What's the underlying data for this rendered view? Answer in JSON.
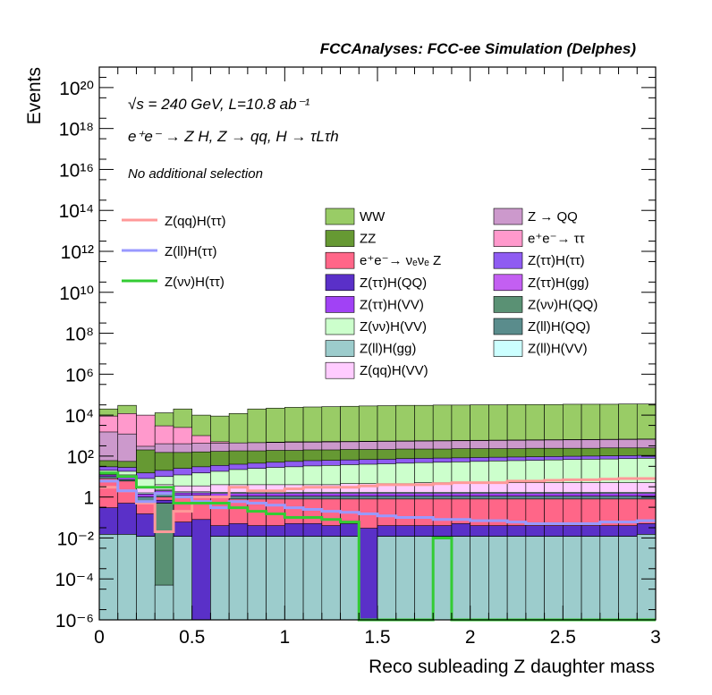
{
  "header": {
    "title": "FCCAnalyses: FCC-ee Simulation (Delphes)",
    "energy_line": "√s = 240 GeV, L=10.8 ab⁻¹",
    "process_line": "e⁺e⁻ → Z H, Z → qq, H → τLτh",
    "selection_line": "No additional selection"
  },
  "chart_data": {
    "type": "histogram",
    "stacked": true,
    "title": "FCCAnalyses: FCC-ee Simulation (Delphes)",
    "xlabel": "Reco subleading Z daughter mass",
    "ylabel": "Events",
    "xlim": [
      0,
      3
    ],
    "ylim": [
      1e-06,
      1e+21
    ],
    "yscale": "log",
    "bin_edges": [
      0,
      0.1,
      0.2,
      0.3,
      0.4,
      0.5,
      0.6,
      0.7,
      0.8,
      0.9,
      1.0,
      1.1,
      1.2,
      1.3,
      1.4,
      1.5,
      1.6,
      1.7,
      1.8,
      1.9,
      2.0,
      2.1,
      2.2,
      2.3,
      2.4,
      2.5,
      2.6,
      2.7,
      2.8,
      2.9,
      3.0
    ],
    "x_ticks": [
      {
        "value": 0,
        "label": "0"
      },
      {
        "value": 0.5,
        "label": "0.5"
      },
      {
        "value": 1,
        "label": "1"
      },
      {
        "value": 1.5,
        "label": "1.5"
      },
      {
        "value": 2,
        "label": "2"
      },
      {
        "value": 2.5,
        "label": "2.5"
      },
      {
        "value": 3,
        "label": "3"
      }
    ],
    "y_ticks": [
      {
        "value": 1e-06,
        "label": "10⁻⁶"
      },
      {
        "value": 0.0001,
        "label": "10⁻⁴"
      },
      {
        "value": 0.01,
        "label": "10⁻²"
      },
      {
        "value": 1,
        "label": "1"
      },
      {
        "value": 100.0,
        "label": "10²"
      },
      {
        "value": 10000.0,
        "label": "10⁴"
      },
      {
        "value": 1000000.0,
        "label": "10⁶"
      },
      {
        "value": 100000000.0,
        "label": "10⁸"
      },
      {
        "value": 10000000000.0,
        "label": "10¹⁰"
      },
      {
        "value": 1000000000000.0,
        "label": "10¹²"
      },
      {
        "value": 100000000000000.0,
        "label": "10¹⁴"
      },
      {
        "value": 1e+16,
        "label": "10¹⁶"
      },
      {
        "value": 1e+18,
        "label": "10¹⁸"
      },
      {
        "value": 1e+20,
        "label": "10²⁰"
      }
    ],
    "stack_boundaries": [
      {
        "name": "Z(ll)H(gg)",
        "color": "#9ccccc",
        "values": [
          0.015,
          0.015,
          0.012,
          5e-05,
          0.012,
          1e-06,
          0.012,
          0.012,
          0.012,
          0.012,
          0.012,
          0.012,
          0.012,
          0.012,
          1e-06,
          0.012,
          0.012,
          0.012,
          0.012,
          0.012,
          0.012,
          0.012,
          0.012,
          0.012,
          0.012,
          0.012,
          0.012,
          0.012,
          0.012,
          0.015
        ]
      },
      {
        "name": "Z(νν)H(QQ)",
        "color": "#5a9174",
        "values": [
          0.015,
          0.015,
          0.012,
          0.5,
          0.012,
          1e-06,
          0.012,
          0.012,
          0.012,
          0.012,
          0.012,
          0.012,
          0.012,
          0.012,
          1e-06,
          0.012,
          0.012,
          0.012,
          0.012,
          0.012,
          0.012,
          0.012,
          0.012,
          0.012,
          0.012,
          0.012,
          0.012,
          0.012,
          0.012,
          0.015
        ]
      },
      {
        "name": "Z(ττ)H(gg)",
        "color": "#c35ff2",
        "values": [
          0.015,
          0.015,
          0.012,
          0.5,
          0.012,
          1e-06,
          0.012,
          0.012,
          0.012,
          0.012,
          0.012,
          0.012,
          0.012,
          0.012,
          1e-06,
          0.012,
          0.012,
          0.012,
          0.012,
          0.012,
          0.012,
          0.012,
          0.012,
          0.012,
          0.012,
          0.012,
          0.012,
          0.012,
          0.012,
          0.015
        ]
      },
      {
        "name": "Z(ττ)H(QQ)",
        "color": "#5a30c8",
        "values": [
          0.3,
          0.5,
          0.15,
          0.7,
          0.06,
          0.08,
          0.04,
          0.05,
          0.04,
          0.04,
          0.05,
          0.05,
          0.04,
          0.05,
          0.03,
          0.04,
          0.04,
          0.04,
          0.04,
          0.05,
          0.04,
          0.04,
          0.04,
          0.04,
          0.04,
          0.04,
          0.04,
          0.04,
          0.04,
          0.05
        ]
      },
      {
        "name": "e⁺e⁻→ νₑνₑ Z",
        "color": "#ff6688",
        "values": [
          8,
          6,
          0.6,
          1.0,
          0.9,
          0.9,
          0.9,
          0.8,
          0.8,
          0.8,
          0.8,
          0.8,
          0.8,
          0.8,
          0.8,
          0.8,
          0.8,
          0.8,
          0.8,
          0.8,
          0.8,
          0.8,
          0.8,
          0.8,
          0.8,
          0.8,
          0.8,
          0.8,
          0.8,
          0.8
        ]
      },
      {
        "name": "Z(ll)H(QQ)",
        "color": "#5a8c8c",
        "values": [
          10,
          7,
          1.0,
          1.5,
          1.2,
          1.2,
          1.1,
          1.1,
          1.1,
          1.1,
          1.1,
          1.1,
          1.1,
          1.1,
          1.1,
          1.1,
          1.1,
          1.1,
          1.1,
          1.1,
          1.1,
          1.1,
          1.1,
          1.1,
          1.1,
          1.1,
          1.1,
          1.1,
          1.1,
          1.1
        ]
      },
      {
        "name": "Z(ττ)H(VV)",
        "color": "#a142f5",
        "values": [
          12,
          9,
          1.4,
          2.0,
          1.6,
          1.6,
          1.5,
          1.5,
          1.5,
          1.5,
          1.5,
          1.5,
          1.5,
          1.5,
          1.5,
          1.5,
          1.5,
          1.5,
          1.5,
          1.5,
          1.5,
          1.5,
          1.5,
          1.5,
          1.5,
          1.5,
          1.5,
          1.5,
          1.5,
          1.5
        ]
      },
      {
        "name": "Z(ll)H(VV)",
        "color": "#ccffff",
        "values": [
          13,
          10,
          1.6,
          2.2,
          1.8,
          1.8,
          1.7,
          1.7,
          1.7,
          1.7,
          1.7,
          1.7,
          1.7,
          1.7,
          1.7,
          1.7,
          1.7,
          1.7,
          1.7,
          1.7,
          1.7,
          1.7,
          1.7,
          1.7,
          1.7,
          1.7,
          1.7,
          1.7,
          1.7,
          1.7
        ]
      },
      {
        "name": "Z(qq)H(VV)",
        "color": "#ffccff",
        "values": [
          15,
          12,
          3,
          4,
          3.5,
          3.5,
          4,
          4,
          4,
          4,
          4,
          4,
          4,
          4.5,
          4.5,
          4.5,
          4.5,
          5,
          5,
          5,
          5,
          5,
          5,
          5,
          5,
          5,
          5,
          5,
          5,
          5
        ]
      },
      {
        "name": "Z(νν)H(VV)",
        "color": "#ccffcc",
        "values": [
          20,
          18,
          8,
          10,
          12,
          15,
          18,
          22,
          25,
          28,
          30,
          33,
          35,
          38,
          40,
          42,
          45,
          48,
          50,
          52,
          55,
          58,
          60,
          62,
          65,
          68,
          70,
          72,
          75,
          78
        ]
      },
      {
        "name": "Z(ττ)H(ττ)",
        "color": "#8f5cf2",
        "values": [
          30,
          28,
          15,
          20,
          25,
          30,
          35,
          40,
          45,
          50,
          55,
          60,
          62,
          65,
          68,
          70,
          75,
          78,
          80,
          82,
          85,
          88,
          90,
          92,
          95,
          98,
          100,
          102,
          105,
          108
        ]
      },
      {
        "name": "ZZ",
        "color": "#669933",
        "values": [
          60,
          55,
          200,
          150,
          150,
          160,
          170,
          180,
          180,
          190,
          190,
          200,
          200,
          210,
          210,
          210,
          220,
          220,
          220,
          230,
          230,
          230,
          230,
          240,
          240,
          240,
          240,
          250,
          250,
          250
        ]
      },
      {
        "name": "Z → QQ",
        "color": "#cc99cc",
        "values": [
          1500,
          1200,
          300,
          400,
          400,
          420,
          430,
          440,
          450,
          460,
          470,
          480,
          490,
          500,
          510,
          520,
          530,
          540,
          550,
          560,
          570,
          580,
          590,
          600,
          610,
          620,
          630,
          640,
          650,
          660
        ]
      },
      {
        "name": "e⁺e⁻→ ττ",
        "color": "#ff99cc",
        "values": [
          9000,
          12000,
          10000,
          3000,
          2500,
          1000,
          500,
          400,
          450,
          480,
          500,
          500,
          520,
          520,
          530,
          540,
          550,
          560,
          570,
          580,
          590,
          600,
          610,
          620,
          630,
          640,
          650,
          660,
          670,
          680
        ]
      },
      {
        "name": "WW",
        "color": "#99cc66",
        "values": [
          20000,
          30000,
          8000,
          13000,
          20000,
          10000,
          9000,
          12000,
          20000,
          22000,
          24000,
          25000,
          26000,
          27000,
          28000,
          29000,
          30000,
          30000,
          31000,
          31000,
          32000,
          32000,
          33000,
          33000,
          33000,
          34000,
          34000,
          34000,
          35000,
          35000
        ]
      }
    ],
    "signal_lines": [
      {
        "name": "Z(qq)H(ττ)",
        "color": "#ff9999",
        "values": [
          3,
          2,
          0.5,
          0.02,
          0.2,
          1.0,
          1.0,
          3,
          2,
          2,
          2.5,
          3,
          3,
          3,
          3.5,
          4,
          4,
          4,
          4.5,
          5,
          5,
          5,
          6,
          6,
          6.5,
          7,
          7,
          7.5,
          8,
          8
        ]
      },
      {
        "name": "Z(ll)H(ττ)",
        "color": "#9999ff",
        "values": [
          6,
          2,
          0.6,
          1.5,
          1.0,
          0.6,
          0.3,
          0.6,
          0.5,
          0.4,
          0.3,
          0.25,
          0.2,
          0.18,
          0.15,
          0.12,
          0.1,
          0.1,
          0.08,
          0.08,
          0.07,
          0.07,
          0.06,
          0.05,
          0.05,
          0.05,
          0.05,
          0.06,
          0.06,
          0.07
        ]
      },
      {
        "name": "Z(νν)H(ττ)",
        "color": "#33cc33",
        "values": [
          15,
          10,
          3,
          3,
          0.5,
          0.5,
          0.5,
          0.3,
          0.2,
          0.15,
          0.1,
          0.1,
          0.08,
          0.06,
          1e-06,
          1e-06,
          1e-06,
          1e-06,
          0.01,
          1e-06,
          1e-06,
          1e-06,
          1e-06,
          1e-06,
          1e-06,
          1e-06,
          1e-06,
          1e-06,
          1e-06,
          1e-06
        ]
      }
    ],
    "legend": {
      "lines": [
        {
          "name": "Z(qq)H(ττ)",
          "color": "#ff9999"
        },
        {
          "name": "Z(ll)H(ττ)",
          "color": "#9999ff"
        },
        {
          "name": "Z(νν)H(ττ)",
          "color": "#33cc33"
        }
      ],
      "columns": [
        [
          {
            "name": "WW",
            "color": "#99cc66"
          },
          {
            "name": "ZZ",
            "color": "#669933"
          },
          {
            "name": "e⁺e⁻→ νₑνₑ Z",
            "color": "#ff6688"
          },
          {
            "name": "Z(ττ)H(QQ)",
            "color": "#5a30c8"
          },
          {
            "name": "Z(ττ)H(VV)",
            "color": "#a142f5"
          },
          {
            "name": "Z(νν)H(VV)",
            "color": "#ccffcc"
          },
          {
            "name": "Z(ll)H(gg)",
            "color": "#9ccccc"
          },
          {
            "name": "Z(qq)H(VV)",
            "color": "#ffccff"
          }
        ],
        [
          {
            "name": "Z → QQ",
            "color": "#cc99cc"
          },
          {
            "name": "e⁺e⁻→ ττ",
            "color": "#ff99cc"
          },
          {
            "name": "Z(ττ)H(ττ)",
            "color": "#8f5cf2"
          },
          {
            "name": "Z(ττ)H(gg)",
            "color": "#c35ff2"
          },
          {
            "name": "Z(νν)H(QQ)",
            "color": "#5a9174"
          },
          {
            "name": "Z(ll)H(QQ)",
            "color": "#5a8c8c"
          },
          {
            "name": "Z(ll)H(VV)",
            "color": "#ccffff"
          }
        ]
      ]
    }
  }
}
